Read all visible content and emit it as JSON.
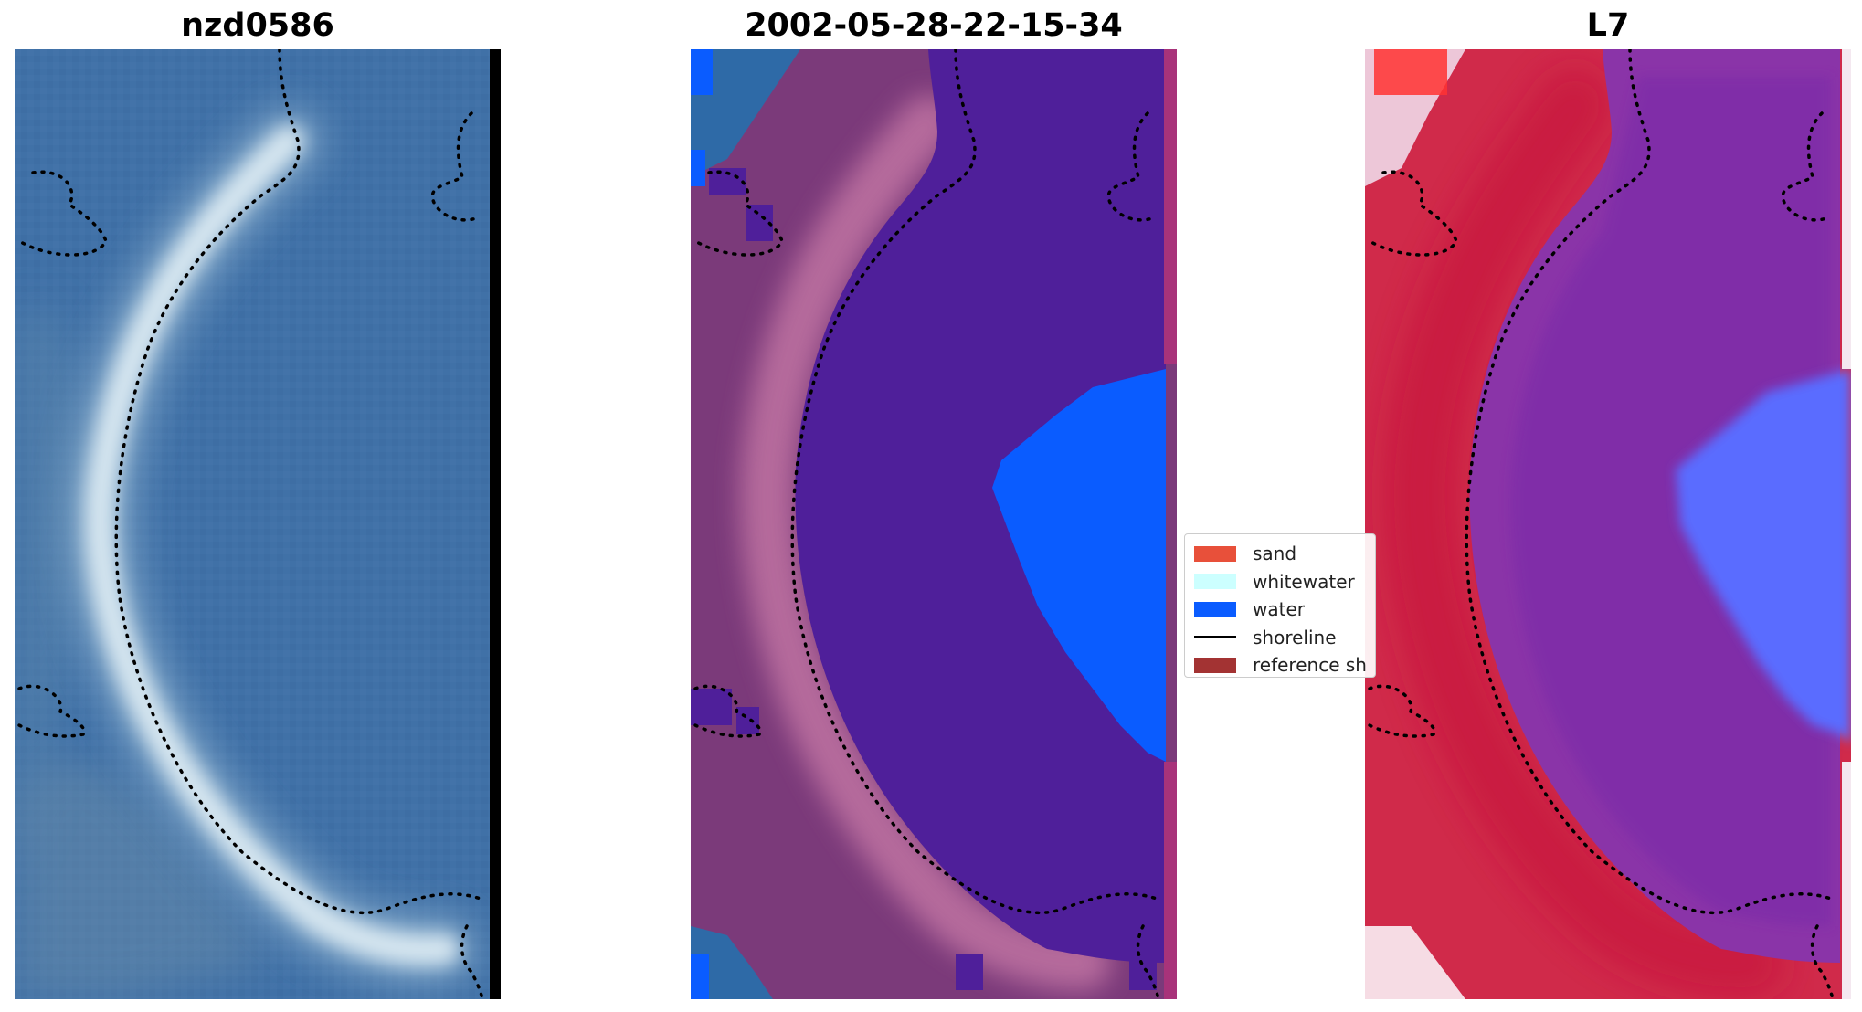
{
  "titles": {
    "rgb": "nzd0586",
    "classified": "2002-05-28-22-15-34",
    "satellite": "L7"
  },
  "legend": {
    "items": [
      {
        "kind": "swatch",
        "label": "sand",
        "color": "#e8503a"
      },
      {
        "kind": "swatch",
        "label": "whitewater",
        "color": "#ccffff"
      },
      {
        "kind": "swatch",
        "label": "water",
        "color": "#0a5cff"
      },
      {
        "kind": "line",
        "label": "shoreline",
        "color": "#000000"
      },
      {
        "kind": "swatch",
        "label": "reference sh",
        "color": "#a33333"
      }
    ]
  },
  "colors": {
    "rgb_water": "#3f6fa6",
    "rgb_sand": "#d6e6f0",
    "rgb_border": "#000000",
    "cls_land": "#7b3a7a",
    "cls_inner": "#4f1f9a",
    "cls_water": "#0a5cff",
    "cls_edge": "#a8337a",
    "ndwi_red": "#d02a4a",
    "ndwi_purple": "#8a34a8",
    "ndwi_blue": "#5a6cff",
    "reference_shoreline": "#000000"
  }
}
